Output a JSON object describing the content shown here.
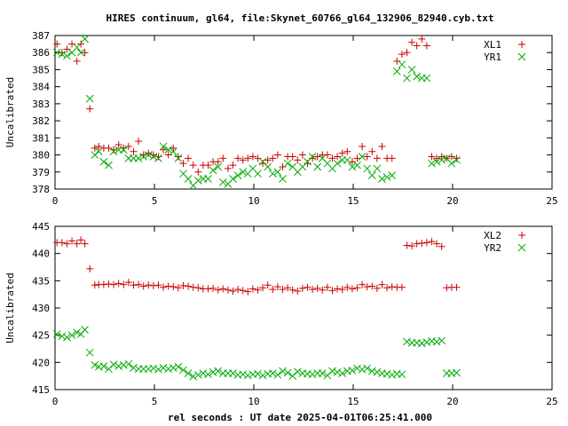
{
  "title": "HIRES continuum, gl64, file:Skynet_60766_gl64_132906_82940.cyb.txt",
  "xlabel": "rel seconds : UT date 2025-04-01T06:25:41.000",
  "colors": {
    "red_series": "#cc0000",
    "green_series": "#00aa00",
    "frame": "#000000",
    "background": "#ffffff"
  },
  "chart_data": [
    {
      "type": "scatter",
      "ylabel": "Uncalibrated",
      "xlim": [
        0,
        25
      ],
      "ylim": [
        378,
        387
      ],
      "xticks": [
        0,
        5,
        10,
        15,
        20,
        25
      ],
      "yticks": [
        378,
        379,
        380,
        381,
        382,
        383,
        384,
        385,
        386,
        387
      ],
      "grid": false,
      "legend_position": "top-right",
      "series": [
        {
          "name": "XL1",
          "marker": "plus",
          "color": "#cc0000",
          "x": [
            0.1,
            0.35,
            0.6,
            0.85,
            1.1,
            1.3,
            1.5,
            1.75,
            2.0,
            2.2,
            2.45,
            2.7,
            2.95,
            3.2,
            3.45,
            3.7,
            3.95,
            4.2,
            4.45,
            4.7,
            4.95,
            5.2,
            5.45,
            5.7,
            5.95,
            6.2,
            6.45,
            6.7,
            6.95,
            7.2,
            7.45,
            7.7,
            7.95,
            8.2,
            8.45,
            8.7,
            8.95,
            9.2,
            9.45,
            9.7,
            9.95,
            10.2,
            10.45,
            10.7,
            10.95,
            11.2,
            11.45,
            11.7,
            11.95,
            12.2,
            12.45,
            12.7,
            12.95,
            13.2,
            13.45,
            13.7,
            13.95,
            14.2,
            14.45,
            14.7,
            14.95,
            15.2,
            15.45,
            15.7,
            15.95,
            16.2,
            16.45,
            16.7,
            16.95,
            17.2,
            17.45,
            17.7,
            17.95,
            18.2,
            18.45,
            18.7,
            18.95,
            19.2,
            19.45,
            19.7,
            19.95,
            20.2
          ],
          "y": [
            386.5,
            386.0,
            386.2,
            386.5,
            385.5,
            386.5,
            386.0,
            382.7,
            380.4,
            380.5,
            380.4,
            380.4,
            380.3,
            380.6,
            380.4,
            380.5,
            380.2,
            380.8,
            380.0,
            380.1,
            380.0,
            379.9,
            380.3,
            380.0,
            380.4,
            379.9,
            379.5,
            379.8,
            379.4,
            379.0,
            379.4,
            379.4,
            379.6,
            379.6,
            379.8,
            379.2,
            379.4,
            379.8,
            379.7,
            379.8,
            379.9,
            379.8,
            379.5,
            379.7,
            379.8,
            380.0,
            379.3,
            379.9,
            379.9,
            379.7,
            380.0,
            379.5,
            379.8,
            379.9,
            380.0,
            380.0,
            379.8,
            379.9,
            380.1,
            380.2,
            379.6,
            379.8,
            380.5,
            379.9,
            380.2,
            379.8,
            380.5,
            379.8,
            379.8,
            385.5,
            385.9,
            386.0,
            386.6,
            386.4,
            386.8,
            386.4,
            379.9,
            379.8,
            379.9,
            379.8,
            379.9,
            379.8
          ],
          "label": "XL1"
        },
        {
          "name": "YR1",
          "marker": "cross",
          "color": "#00aa00",
          "x": [
            0.1,
            0.35,
            0.6,
            0.85,
            1.1,
            1.3,
            1.5,
            1.75,
            2.0,
            2.2,
            2.45,
            2.7,
            2.95,
            3.2,
            3.45,
            3.7,
            3.95,
            4.2,
            4.45,
            4.7,
            4.95,
            5.2,
            5.45,
            5.7,
            5.95,
            6.2,
            6.45,
            6.7,
            6.95,
            7.2,
            7.45,
            7.7,
            7.95,
            8.2,
            8.45,
            8.7,
            8.95,
            9.2,
            9.45,
            9.7,
            9.95,
            10.2,
            10.45,
            10.7,
            10.95,
            11.2,
            11.45,
            11.7,
            11.95,
            12.2,
            12.45,
            12.7,
            12.95,
            13.2,
            13.45,
            13.7,
            13.95,
            14.2,
            14.45,
            14.7,
            14.95,
            15.2,
            15.45,
            15.7,
            15.95,
            16.2,
            16.45,
            16.7,
            16.95,
            17.2,
            17.45,
            17.7,
            17.95,
            18.2,
            18.45,
            18.7,
            18.95,
            19.2,
            19.45,
            19.7,
            19.95,
            20.2
          ],
          "y": [
            386.0,
            385.9,
            385.8,
            386.0,
            386.3,
            386.0,
            386.8,
            383.3,
            380.0,
            380.2,
            379.6,
            379.4,
            380.2,
            380.3,
            380.3,
            379.8,
            379.8,
            379.8,
            379.9,
            380.0,
            379.9,
            379.8,
            380.5,
            380.3,
            380.2,
            379.8,
            378.9,
            378.6,
            378.2,
            378.5,
            378.6,
            378.6,
            379.1,
            379.3,
            378.4,
            378.3,
            378.6,
            378.8,
            379.0,
            378.9,
            379.2,
            378.9,
            379.6,
            379.3,
            378.9,
            379.0,
            378.6,
            379.5,
            379.3,
            379.0,
            379.3,
            379.6,
            379.9,
            379.3,
            379.8,
            379.5,
            379.2,
            379.5,
            379.7,
            379.7,
            379.3,
            379.4,
            379.9,
            379.2,
            378.8,
            379.2,
            378.6,
            378.7,
            378.8,
            384.9,
            385.3,
            384.5,
            385.0,
            384.6,
            384.5,
            384.5,
            379.5,
            379.6,
            379.7,
            379.8,
            379.5,
            379.7
          ],
          "label": "YR1"
        }
      ]
    },
    {
      "type": "scatter",
      "ylabel": "Uncalibrated",
      "xlim": [
        0,
        25
      ],
      "ylim": [
        415,
        445
      ],
      "xticks": [
        0,
        5,
        10,
        15,
        20,
        25
      ],
      "yticks": [
        415,
        420,
        425,
        430,
        435,
        440,
        445
      ],
      "grid": false,
      "legend_position": "top-right",
      "series": [
        {
          "name": "XL2",
          "marker": "plus",
          "color": "#cc0000",
          "x": [
            0.1,
            0.35,
            0.6,
            0.85,
            1.1,
            1.3,
            1.5,
            1.75,
            2.0,
            2.2,
            2.45,
            2.7,
            2.95,
            3.2,
            3.45,
            3.7,
            3.95,
            4.2,
            4.45,
            4.7,
            4.95,
            5.2,
            5.45,
            5.7,
            5.95,
            6.2,
            6.45,
            6.7,
            6.95,
            7.2,
            7.45,
            7.7,
            7.95,
            8.2,
            8.45,
            8.7,
            8.95,
            9.2,
            9.45,
            9.7,
            9.95,
            10.2,
            10.45,
            10.7,
            10.95,
            11.2,
            11.45,
            11.7,
            11.95,
            12.2,
            12.45,
            12.7,
            12.95,
            13.2,
            13.45,
            13.7,
            13.95,
            14.2,
            14.45,
            14.7,
            14.95,
            15.2,
            15.45,
            15.7,
            15.95,
            16.2,
            16.45,
            16.7,
            16.95,
            17.2,
            17.45,
            17.7,
            17.95,
            18.2,
            18.45,
            18.7,
            18.95,
            19.2,
            19.45,
            19.7,
            19.95,
            20.2
          ],
          "y": [
            442.0,
            442.0,
            441.8,
            442.3,
            441.8,
            442.5,
            441.8,
            437.2,
            434.2,
            434.3,
            434.3,
            434.4,
            434.3,
            434.5,
            434.3,
            434.7,
            434.2,
            434.3,
            434.0,
            434.2,
            434.1,
            434.2,
            433.8,
            434.0,
            433.9,
            433.7,
            434.1,
            434.0,
            433.8,
            433.7,
            433.5,
            433.5,
            433.6,
            433.3,
            433.5,
            433.3,
            433.1,
            433.4,
            433.2,
            433.0,
            433.5,
            433.3,
            433.7,
            434.2,
            433.4,
            433.9,
            433.4,
            433.7,
            433.3,
            433.1,
            433.6,
            433.8,
            433.4,
            433.6,
            433.3,
            433.8,
            433.2,
            433.5,
            433.4,
            433.8,
            433.5,
            433.7,
            434.3,
            433.9,
            434.0,
            433.6,
            434.3,
            433.7,
            433.9,
            433.8,
            433.8,
            441.5,
            441.4,
            441.8,
            441.9,
            442.0,
            442.2,
            441.8,
            441.3,
            433.7,
            433.8,
            433.8
          ],
          "label": "XL2"
        },
        {
          "name": "YR2",
          "marker": "cross",
          "color": "#00aa00",
          "x": [
            0.1,
            0.35,
            0.6,
            0.85,
            1.1,
            1.3,
            1.5,
            1.75,
            2.0,
            2.2,
            2.45,
            2.7,
            2.95,
            3.2,
            3.45,
            3.7,
            3.95,
            4.2,
            4.45,
            4.7,
            4.95,
            5.2,
            5.45,
            5.7,
            5.95,
            6.2,
            6.45,
            6.7,
            6.95,
            7.2,
            7.45,
            7.7,
            7.95,
            8.2,
            8.45,
            8.7,
            8.95,
            9.2,
            9.45,
            9.7,
            9.95,
            10.2,
            10.45,
            10.7,
            10.95,
            11.2,
            11.45,
            11.7,
            11.95,
            12.2,
            12.45,
            12.7,
            12.95,
            13.2,
            13.45,
            13.7,
            13.95,
            14.2,
            14.45,
            14.7,
            14.95,
            15.2,
            15.45,
            15.7,
            15.95,
            16.2,
            16.45,
            16.7,
            16.95,
            17.2,
            17.45,
            17.7,
            17.95,
            18.2,
            18.45,
            18.7,
            18.95,
            19.2,
            19.45,
            19.7,
            19.95,
            20.2
          ],
          "y": [
            425.2,
            424.8,
            424.6,
            425.0,
            425.5,
            425.2,
            426.0,
            421.8,
            419.5,
            419.2,
            419.3,
            418.8,
            419.6,
            419.3,
            419.5,
            419.7,
            419.0,
            418.8,
            418.8,
            418.8,
            418.9,
            418.7,
            419.0,
            418.8,
            419.0,
            419.2,
            418.6,
            418.0,
            417.4,
            417.7,
            418.0,
            417.8,
            418.2,
            418.4,
            418.0,
            418.0,
            418.0,
            417.7,
            417.8,
            417.6,
            417.8,
            417.9,
            417.6,
            417.9,
            418.0,
            417.7,
            418.4,
            418.1,
            417.5,
            418.3,
            418.0,
            417.9,
            417.8,
            418.0,
            418.0,
            417.6,
            418.4,
            418.2,
            418.0,
            418.4,
            418.5,
            418.9,
            418.7,
            418.9,
            418.4,
            418.2,
            418.0,
            417.9,
            417.7,
            417.9,
            417.8,
            423.8,
            423.6,
            423.6,
            423.5,
            423.7,
            423.9,
            423.8,
            424.0,
            418.0,
            418.0,
            418.1
          ],
          "label": "YR2"
        }
      ]
    }
  ]
}
